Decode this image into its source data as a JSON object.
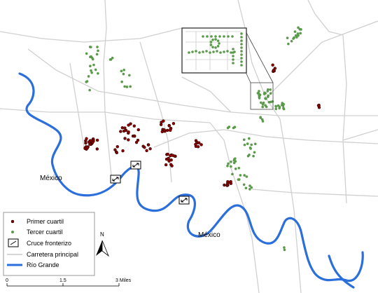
{
  "labels": {
    "mexico_west": "México",
    "mexico_south": "México",
    "north": "N"
  },
  "legend": {
    "items": [
      "Primer cuartil",
      "Tercer cuartil",
      "Cruce fronterizo",
      "Carretera principal",
      "Río Grande"
    ]
  },
  "scale_bar": {
    "labels": [
      "0",
      "1.5",
      "3 Miles"
    ]
  }
}
